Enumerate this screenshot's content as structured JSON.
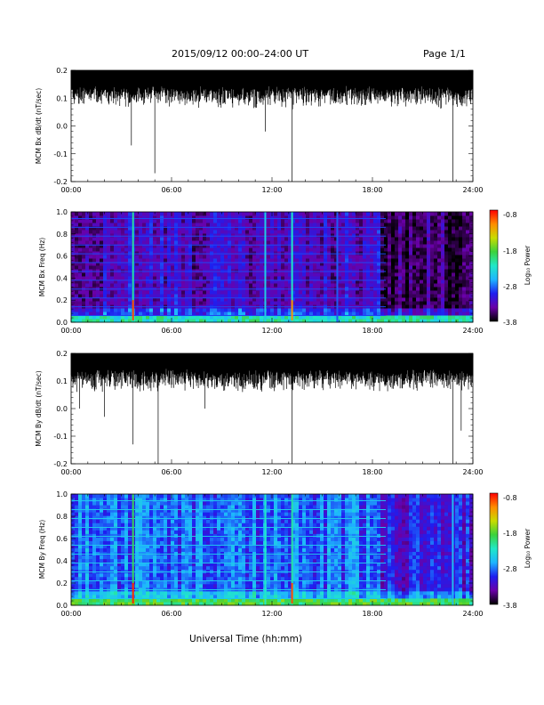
{
  "header": {
    "date_range": "2015/09/12  00:00–24:00 UT",
    "page": "Page 1/1"
  },
  "x_axis": {
    "ticks": [
      "00:00",
      "06:00",
      "12:00",
      "18:00",
      "24:00"
    ],
    "title": "Universal Time (hh:mm)"
  },
  "colorbar": {
    "ticks": [
      "-0.8",
      "-1.8",
      "-2.8",
      "-3.8"
    ],
    "label": "Log₁₀ Power",
    "range": [
      -3.8,
      -0.8
    ],
    "scale": [
      "#000000",
      "#6a00a8",
      "#1e1ef0",
      "#1eb4ff",
      "#20e8c8",
      "#3cd23c",
      "#c8dc00",
      "#ff8c00",
      "#ff0000"
    ]
  },
  "chart_data": [
    {
      "type": "line",
      "title": "",
      "xlabel": "",
      "ylabel": "MCM Bx dB/dt (nT/sec)",
      "xlim": [
        0,
        24
      ],
      "ylim": [
        -0.2,
        0.2
      ],
      "yticks": [
        "0.2",
        "0.1",
        "0.0",
        "-0.1",
        "-0.2"
      ],
      "grid": false,
      "series": [
        {
          "values_note_free": true,
          "x": [
            0,
            1,
            2,
            3,
            3.6,
            4,
            4.5,
            5,
            6,
            7,
            7.5,
            8,
            9,
            10,
            11,
            11.6,
            12,
            13,
            13.2,
            14,
            15,
            16,
            17,
            18,
            19,
            20,
            21,
            22,
            22.8,
            23.3,
            24
          ],
          "envelope_low": [
            0.08,
            0.08,
            0.08,
            0.07,
            -0.07,
            0.07,
            0.08,
            -0.17,
            0.08,
            0.05,
            0.02,
            0.04,
            0.06,
            0.05,
            0.06,
            -0.02,
            0.08,
            0.06,
            -0.2,
            0.07,
            0.07,
            0.08,
            0.07,
            0.08,
            0.07,
            0.07,
            0.08,
            0.05,
            -0.2,
            0.06,
            0.08
          ],
          "envelope_high": [
            0.2,
            0.2,
            0.2,
            0.2,
            0.2,
            0.2,
            0.2,
            0.2,
            0.2,
            0.2,
            0.2,
            0.2,
            0.2,
            0.2,
            0.2,
            0.2,
            0.2,
            0.2,
            0.2,
            0.2,
            0.2,
            0.2,
            0.2,
            0.2,
            0.2,
            0.2,
            0.2,
            0.2,
            0.2,
            0.2,
            0.2
          ]
        }
      ]
    },
    {
      "type": "heatmap",
      "title": "",
      "xlabel": "",
      "ylabel": "MCM Bx Freq (Hz)",
      "xlim": [
        0,
        24
      ],
      "ylim": [
        0.0,
        1.0
      ],
      "yticks": [
        "1.0",
        "0.8",
        "0.6",
        "0.4",
        "0.2",
        "0.0"
      ],
      "z_range": [
        -3.8,
        -0.8
      ],
      "background_power": -3.3,
      "harmonic_lines_hz": [
        0.06,
        0.14,
        0.22,
        0.3,
        0.38,
        0.46,
        0.54,
        0.62,
        0.7,
        0.78,
        0.86,
        0.94
      ],
      "low_freq_band": {
        "fmax": 0.05,
        "power": -2.4
      },
      "spikes": [
        {
          "time": 3.7,
          "power": -2.2,
          "peak_power": -1.0
        },
        {
          "time": 11.6,
          "power": -2.5
        },
        {
          "time": 13.2,
          "power": -2.3,
          "peak_power": -1.2
        },
        {
          "time": 15.9,
          "power": -2.9
        }
      ]
    },
    {
      "type": "line",
      "title": "",
      "xlabel": "",
      "ylabel": "MCM By dB/dt (nT/sec)",
      "xlim": [
        0,
        24
      ],
      "ylim": [
        -0.2,
        0.2
      ],
      "yticks": [
        "0.2",
        "0.1",
        "0.0",
        "-0.1",
        "-0.2"
      ],
      "grid": false,
      "series": [
        {
          "x": [
            0,
            0.5,
            1,
            2,
            3,
            3.7,
            4,
            5,
            5.2,
            6,
            7,
            8,
            9,
            10,
            11,
            12,
            13,
            13.2,
            14,
            15,
            16,
            17,
            18,
            19,
            20,
            21,
            22,
            22.8,
            23.3,
            24
          ],
          "envelope_low": [
            0.05,
            0.0,
            0.05,
            -0.03,
            0.05,
            -0.13,
            0.05,
            0.05,
            -0.2,
            0.07,
            0.04,
            0.0,
            0.06,
            0.06,
            0.06,
            0.06,
            0.07,
            -0.2,
            0.06,
            0.05,
            0.07,
            0.07,
            0.04,
            0.02,
            0.02,
            0.02,
            0.03,
            -0.2,
            -0.08,
            0.06
          ],
          "envelope_high": [
            0.2,
            0.2,
            0.2,
            0.2,
            0.2,
            0.2,
            0.2,
            0.2,
            0.2,
            0.2,
            0.2,
            0.2,
            0.2,
            0.2,
            0.2,
            0.2,
            0.2,
            0.2,
            0.2,
            0.2,
            0.2,
            0.2,
            0.2,
            0.2,
            0.2,
            0.2,
            0.2,
            0.2,
            0.2,
            0.2
          ]
        }
      ]
    },
    {
      "type": "heatmap",
      "title": "",
      "xlabel": "",
      "ylabel": "MCM By Freq (Hz)",
      "xlim": [
        0,
        24
      ],
      "ylim": [
        0.0,
        1.0
      ],
      "yticks": [
        "1.0",
        "0.8",
        "0.6",
        "0.4",
        "0.2",
        "0.0"
      ],
      "z_range": [
        -3.8,
        -0.8
      ],
      "background_power": -2.9,
      "harmonic_lines_hz": [
        0.06,
        0.14,
        0.22,
        0.3,
        0.38,
        0.46,
        0.54,
        0.62,
        0.7,
        0.78,
        0.86,
        0.94
      ],
      "low_freq_band": {
        "fmax": 0.06,
        "power": -2.1
      },
      "spikes": [
        {
          "time": 3.7,
          "power": -2.0,
          "peak_power": -0.9
        },
        {
          "time": 11.6,
          "power": -2.3
        },
        {
          "time": 13.2,
          "power": -2.2,
          "peak_power": -1.0
        },
        {
          "time": 22.8,
          "power": -2.6
        }
      ]
    }
  ]
}
